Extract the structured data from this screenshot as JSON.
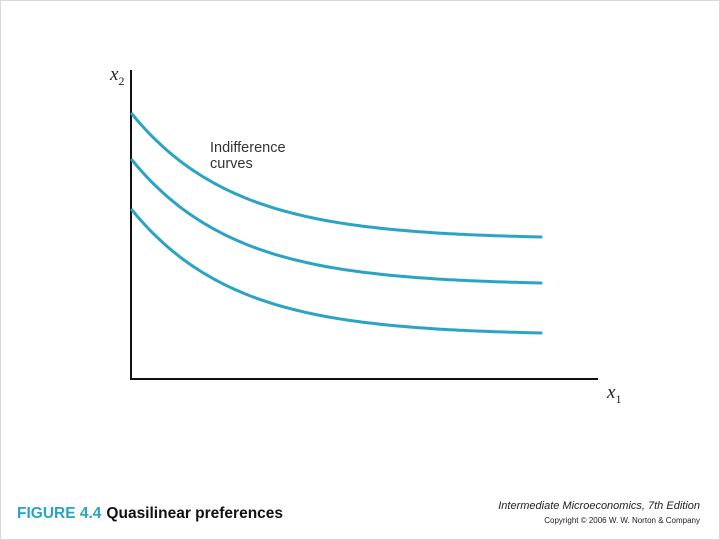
{
  "diagram": {
    "y_axis_label": {
      "base": "x",
      "sub": "2"
    },
    "x_axis_label": {
      "base": "x",
      "sub": "1"
    },
    "annotation": [
      "Indifference",
      "curves"
    ],
    "curves": [
      {
        "name": "curve-high"
      },
      {
        "name": "curve-middle"
      },
      {
        "name": "curve-low"
      }
    ],
    "curve_color": "#2aa3c4",
    "axis_color": "#111111"
  },
  "caption": {
    "figure_number": "FIGURE 4.4",
    "title": "Quasilinear preferences"
  },
  "credit": {
    "book": "Intermediate Microeconomics, 7th Edition",
    "copyright": "Copyright © 2006 W. W. Norton & Company"
  }
}
